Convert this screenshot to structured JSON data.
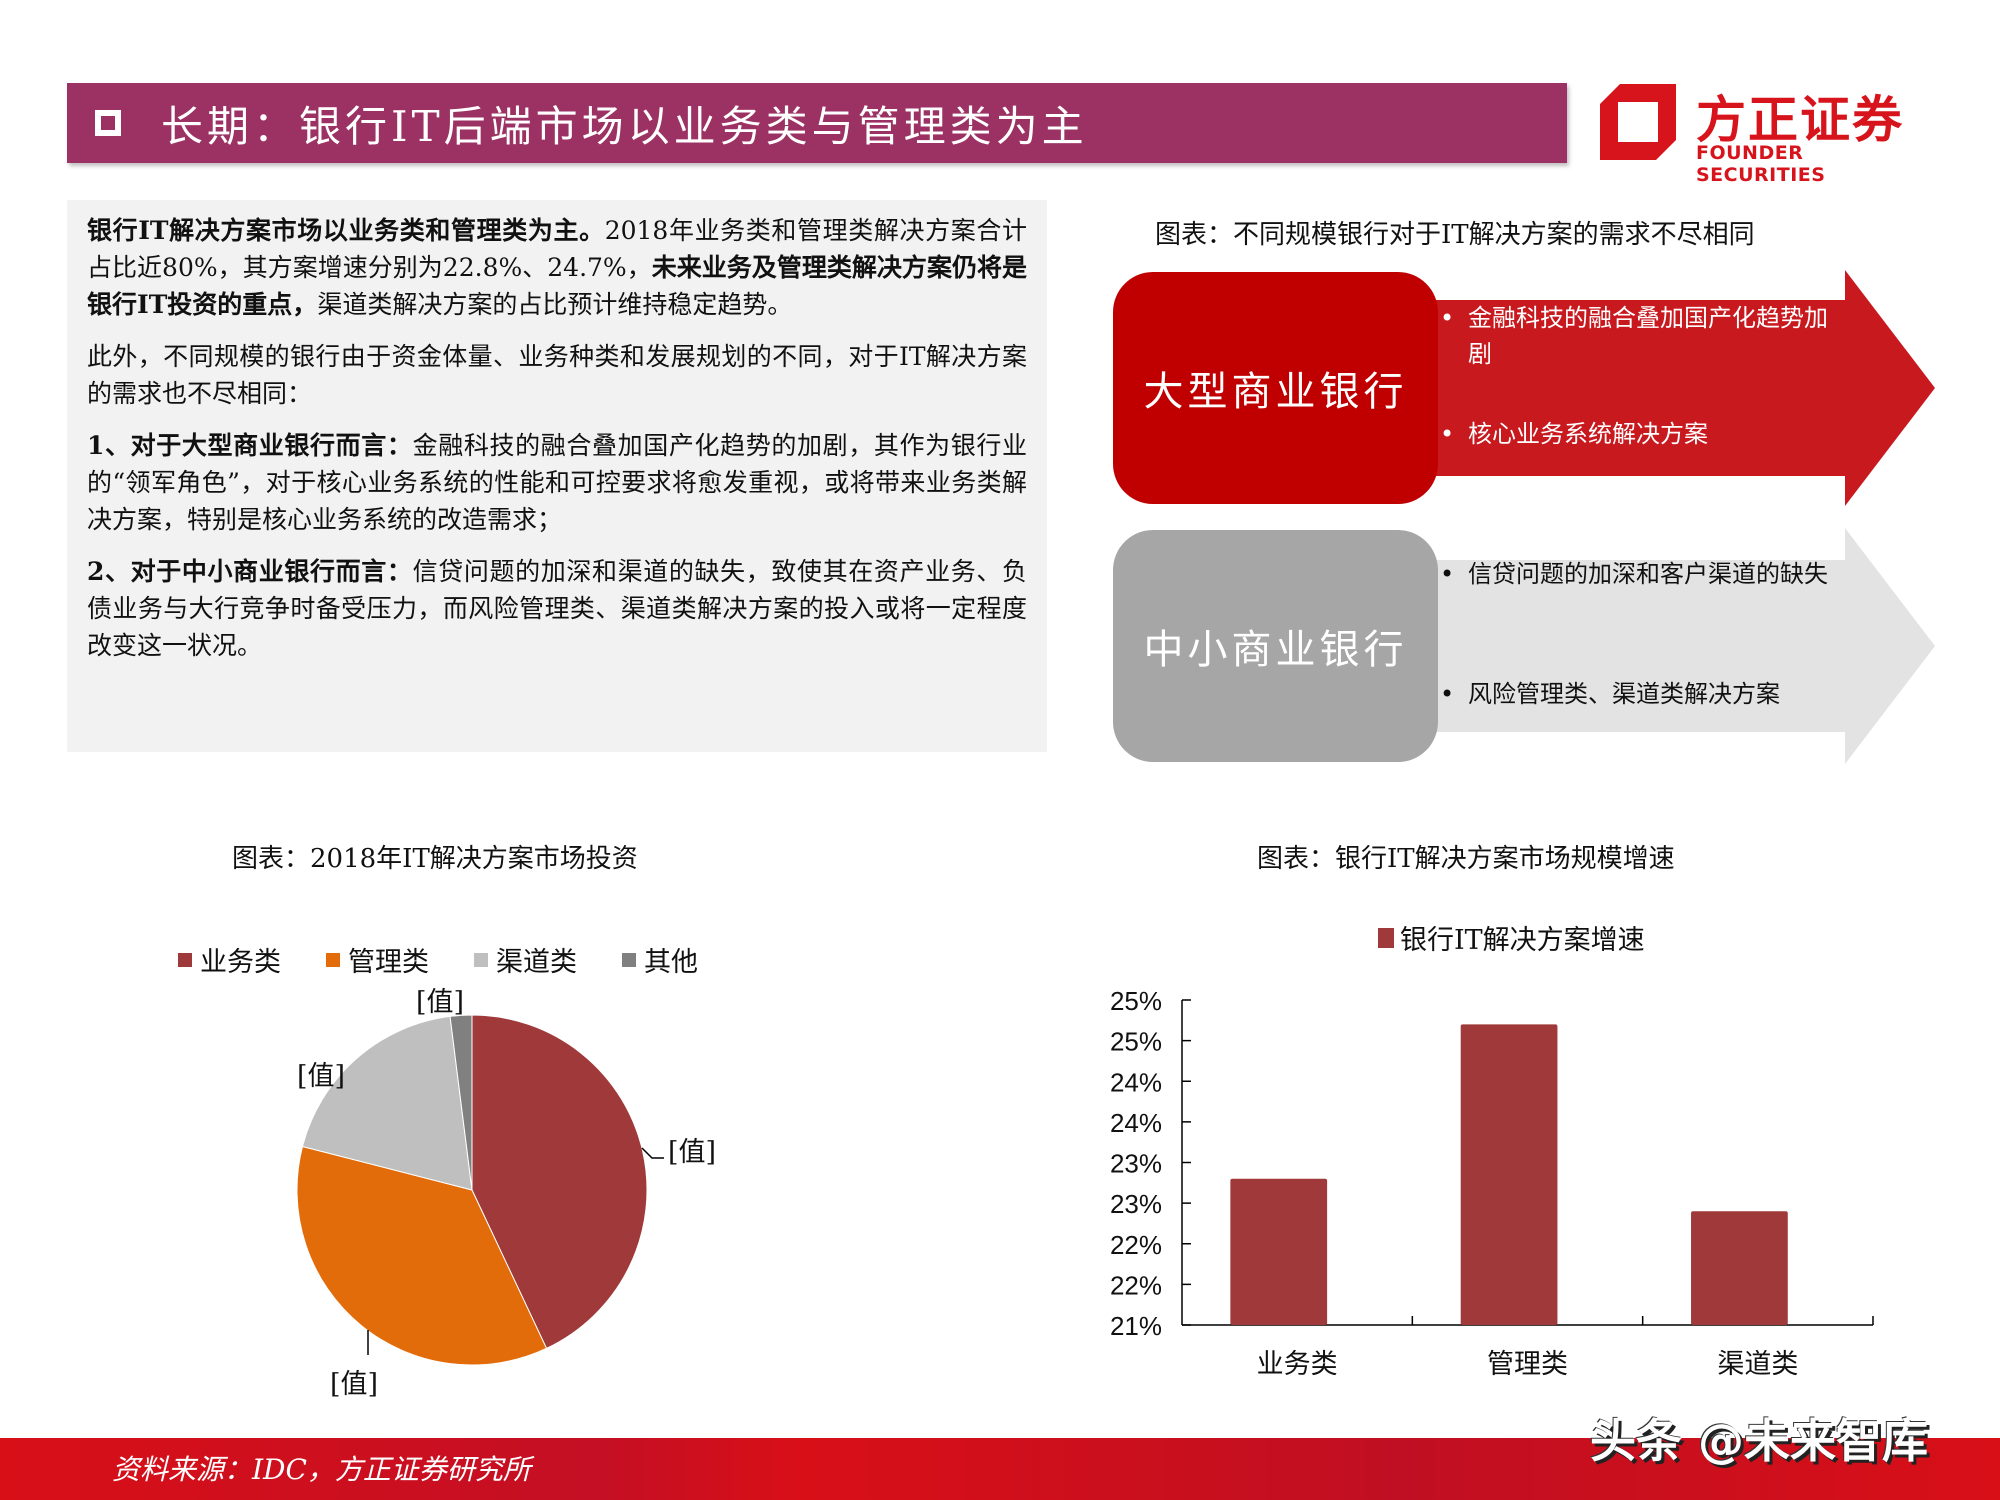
{
  "header": {
    "title": "长期：银行IT后端市场以业务类与管理类为主",
    "logo_cn": "方正证券",
    "logo_en": "FOUNDER SECURITIES"
  },
  "text_panel": {
    "p1_bold": "银行IT解决方案市场以业务类和管理类为主。",
    "p1_normal": "2018年业务类和管理类解决方案合计占比近80%，其方案增速分别为22.8%、24.7%，",
    "p1_bold2": "未来业务及管理类解决方案仍将是银行IT投资的重点，",
    "p1_normal2": "渠道类解决方案的占比预计维持稳定趋势。",
    "p2": "此外，不同规模的银行由于资金体量、业务种类和发展规划的不同，对于IT解决方案的需求也不尽相同：",
    "p3_bold": "1、对于大型商业银行而言：",
    "p3_normal": "金融科技的融合叠加国产化趋势的加剧，其作为银行业的“领军角色”，对于核心业务系统的性能和可控要求将愈发重视，或将带来业务类解决方案，特别是核心业务系统的改造需求；",
    "p4_bold": "2、对于中小商业银行而言：",
    "p4_normal": "信贷问题的加深和渠道的缺失，致使其在资产业务、负债业务与大行竞争时备受压力，而风险管理类、渠道类解决方案的投入或将一定程度改变这一状况。"
  },
  "diagram": {
    "caption": "图表：不同规模银行对于IT解决方案的需求不尽相同",
    "large_bank": {
      "label": "大型商业银行",
      "bullets": [
        "金融科技的融合叠加国产化趋势加剧",
        "核心业务系统解决方案"
      ],
      "box_color": "#c00000",
      "arrow_color": "#c8191f"
    },
    "small_bank": {
      "label": "中小商业银行",
      "bullets": [
        "信贷问题的加深和客户渠道的缺失",
        "风险管理类、渠道类解决方案"
      ],
      "box_color": "#a6a6a6",
      "arrow_color": "#e3e3e3"
    }
  },
  "chart_data": [
    {
      "type": "pie",
      "title": "图表：2018年IT解决方案市场投资",
      "categories": [
        "业务类",
        "管理类",
        "渠道类",
        "其他"
      ],
      "values": [
        43,
        36,
        19,
        2
      ],
      "colors": [
        "#a03a3a",
        "#e36c0a",
        "#bfbfbf",
        "#808080"
      ],
      "data_labels": [
        "[值]",
        "[值]",
        "[值]",
        "[值]"
      ],
      "legend_position": "top"
    },
    {
      "type": "bar",
      "title": "图表：银行IT解决方案市场规模增速",
      "categories": [
        "业务类",
        "管理类",
        "渠道类"
      ],
      "series": [
        {
          "name": "银行IT解决方案增速",
          "values": [
            22.8,
            24.7,
            22.4
          ],
          "color": "#a03a3a"
        }
      ],
      "xlabel": "",
      "ylabel": "",
      "ylim": [
        21,
        25
      ],
      "yticks": [
        "21%",
        "22%",
        "22%",
        "23%",
        "23%",
        "24%",
        "24%",
        "25%",
        "25%"
      ],
      "grid": false,
      "legend_position": "top"
    }
  ],
  "footer": {
    "source": "资料来源：IDC，方正证券研究所",
    "watermark": "头条 @未来智库"
  }
}
